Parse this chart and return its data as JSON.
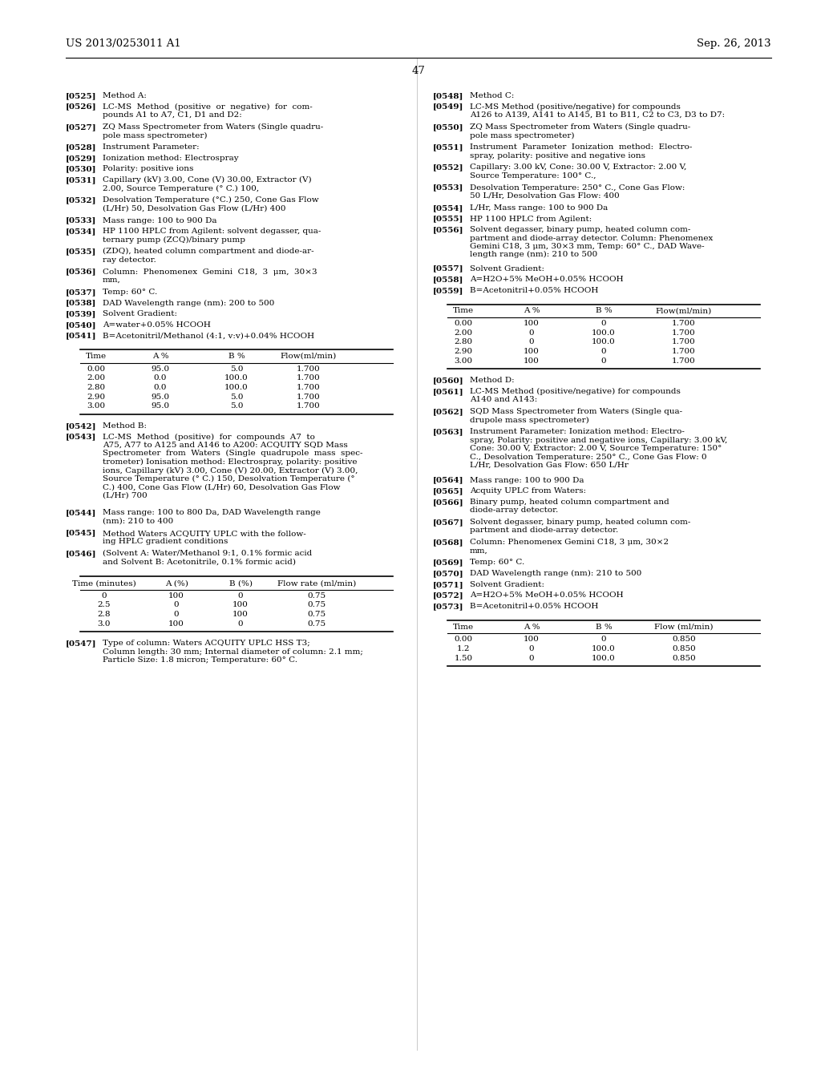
{
  "bg_color": "#ffffff",
  "header_left": "US 2013/0253011 A1",
  "header_right": "Sep. 26, 2013",
  "page_number": "47",
  "left_column": [
    {
      "tag": "[0525]",
      "text": "Method A:"
    },
    {
      "tag": "[0526]",
      "text": "LC-MS  Method  (positive  or  negative)  for  com-\npounds A1 to A7, C1, D1 and D2:"
    },
    {
      "tag": "[0527]",
      "text": "ZQ Mass Spectrometer from Waters (Single quadru-\npole mass spectrometer)"
    },
    {
      "tag": "[0528]",
      "text": "Instrument Parameter:"
    },
    {
      "tag": "[0529]",
      "text": "Ionization method: Electrospray"
    },
    {
      "tag": "[0530]",
      "text": "Polarity: positive ions"
    },
    {
      "tag": "[0531]",
      "text": "Capillary (kV) 3.00, Cone (V) 30.00, Extractor (V)\n2.00, Source Temperature (° C.) 100,"
    },
    {
      "tag": "[0532]",
      "text": "Desolvation Temperature (°C.) 250, Cone Gas Flow\n(L/Hr) 50, Desolvation Gas Flow (L/Hr) 400"
    },
    {
      "tag": "[0533]",
      "text": "Mass range: 100 to 900 Da"
    },
    {
      "tag": "[0534]",
      "text": "HP 1100 HPLC from Agilent: solvent degasser, qua-\nternary pump (ZCQ)/binary pump"
    },
    {
      "tag": "[0535]",
      "text": "(ZDQ), heated column compartment and diode-ar-\nray detector."
    },
    {
      "tag": "[0536]",
      "text": "Column:  Phenomenex  Gemini  C18,  3  μm,  30×3\nmm,"
    },
    {
      "tag": "[0537]",
      "text": "Temp: 60° C."
    },
    {
      "tag": "[0538]",
      "text": "DAD Wavelength range (nm): 200 to 500"
    },
    {
      "tag": "[0539]",
      "text": "Solvent Gradient:"
    },
    {
      "tag": "[0540]",
      "text": "A=water+0.05% HCOOH"
    },
    {
      "tag": "[0541]",
      "text": "B=Acetonitril/Methanol (4:1, v:v)+0.04% HCOOH"
    }
  ],
  "table1_headers": [
    "Time",
    "A %",
    "B %",
    "Flow(ml/min)"
  ],
  "table1_data": [
    [
      "0.00",
      "95.0",
      "5.0",
      "1.700"
    ],
    [
      "2.00",
      "0.0",
      "100.0",
      "1.700"
    ],
    [
      "2.80",
      "0.0",
      "100.0",
      "1.700"
    ],
    [
      "2.90",
      "95.0",
      "5.0",
      "1.700"
    ],
    [
      "3.00",
      "95.0",
      "5.0",
      "1.700"
    ]
  ],
  "left_column2": [
    {
      "tag": "[0542]",
      "text": "Method B:"
    },
    {
      "tag": "[0543]",
      "text": "LC-MS  Method  (positive)  for  compounds  A7  to\nA75, A77 to A125 and A146 to A200: ACQUITY SQD Mass\nSpectrometer  from  Waters  (Single  quadrupole  mass  spec-\ntrometer) Ionisation method: Electrospray, polarity: positive\nions, Capillary (kV) 3.00, Cone (V) 20.00, Extractor (V) 3.00,\nSource Temperature (° C.) 150, Desolvation Temperature (°\nC.) 400, Cone Gas Flow (L/Hr) 60, Desolvation Gas Flow\n(L/Hr) 700"
    },
    {
      "tag": "[0544]",
      "text": "Mass range: 100 to 800 Da, DAD Wavelength range\n(nm): 210 to 400"
    },
    {
      "tag": "[0545]",
      "text": "Method Waters ACQUITY UPLC with the follow-\ning HPLC gradient conditions"
    },
    {
      "tag": "[0546]",
      "text": "(Solvent A: Water/Methanol 9:1, 0.1% formic acid\nand Solvent B: Acetonitrile, 0.1% formic acid)"
    }
  ],
  "table2_headers": [
    "Time (minutes)",
    "A (%)",
    "B (%)",
    "Flow rate (ml/min)"
  ],
  "table2_data": [
    [
      "0",
      "100",
      "0",
      "0.75"
    ],
    [
      "2.5",
      "0",
      "100",
      "0.75"
    ],
    [
      "2.8",
      "0",
      "100",
      "0.75"
    ],
    [
      "3.0",
      "100",
      "0",
      "0.75"
    ]
  ],
  "left_column3": [
    {
      "tag": "[0547]",
      "text": "Type of column: Waters ACQUITY UPLC HSS T3;\nColumn length: 30 mm; Internal diameter of column: 2.1 mm;\nParticle Size: 1.8 micron; Temperature: 60° C."
    }
  ],
  "right_column": [
    {
      "tag": "[0548]",
      "text": "Method C:"
    },
    {
      "tag": "[0549]",
      "text": "LC-MS Method (positive/negative) for compounds\nA126 to A139, A141 to A145, B1 to B11, C2 to C3, D3 to D7:"
    },
    {
      "tag": "[0550]",
      "text": "ZQ Mass Spectrometer from Waters (Single quadru-\npole mass spectrometer)"
    },
    {
      "tag": "[0551]",
      "text": "Instrument  Parameter  Ionization  method:  Electro-\nspray, polarity: positive and negative ions"
    },
    {
      "tag": "[0552]",
      "text": "Capillary: 3.00 kV, Cone: 30.00 V, Extractor: 2.00 V,\nSource Temperature: 100° C.,"
    },
    {
      "tag": "[0553]",
      "text": "Desolvation Temperature: 250° C., Cone Gas Flow:\n50 L/Hr, Desolvation Gas Flow: 400"
    },
    {
      "tag": "[0554]",
      "text": "L/Hr, Mass range: 100 to 900 Da"
    },
    {
      "tag": "[0555]",
      "text": "HP 1100 HPLC from Agilent:"
    },
    {
      "tag": "[0556]",
      "text": "Solvent degasser, binary pump, heated column com-\npartment and diode-array detector. Column: Phenomenex\nGemini C18, 3 μm, 30×3 mm, Temp: 60° C., DAD Wave-\nlength range (nm): 210 to 500"
    },
    {
      "tag": "[0557]",
      "text": "Solvent Gradient:"
    },
    {
      "tag": "[0558]",
      "text": "A=H2O+5% MeOH+0.05% HCOOH"
    },
    {
      "tag": "[0559]",
      "text": "B=Acetonitril+0.05% HCOOH"
    }
  ],
  "table3_headers": [
    "Time",
    "A %",
    "B %",
    "Flow(ml/min)"
  ],
  "table3_data": [
    [
      "0.00",
      "100",
      "0",
      "1.700"
    ],
    [
      "2.00",
      "0",
      "100.0",
      "1.700"
    ],
    [
      "2.80",
      "0",
      "100.0",
      "1.700"
    ],
    [
      "2.90",
      "100",
      "0",
      "1.700"
    ],
    [
      "3.00",
      "100",
      "0",
      "1.700"
    ]
  ],
  "right_column2": [
    {
      "tag": "[0560]",
      "text": "Method D:"
    },
    {
      "tag": "[0561]",
      "text": "LC-MS Method (positive/negative) for compounds\nA140 and A143:"
    },
    {
      "tag": "[0562]",
      "text": "SQD Mass Spectrometer from Waters (Single qua-\ndrupole mass spectrometer)"
    },
    {
      "tag": "[0563]",
      "text": "Instrument Parameter: Ionization method: Electro-\nspray, Polarity: positive and negative ions, Capillary: 3.00 kV,\nCone: 30.00 V, Extractor: 2.00 V, Source Temperature: 150°\nC., Desolvation Temperature: 250° C., Cone Gas Flow: 0\nL/Hr, Desolvation Gas Flow: 650 L/Hr"
    },
    {
      "tag": "[0564]",
      "text": "Mass range: 100 to 900 Da"
    },
    {
      "tag": "[0565]",
      "text": "Acquity UPLC from Waters:"
    },
    {
      "tag": "[0566]",
      "text": "Binary pump, heated column compartment and\ndiode-array detector."
    },
    {
      "tag": "[0567]",
      "text": "Solvent degasser, binary pump, heated column com-\npartment and diode-array detector."
    },
    {
      "tag": "[0568]",
      "text": "Column: Phenomenex Gemini C18, 3 μm, 30×2\nmm,"
    },
    {
      "tag": "[0569]",
      "text": "Temp: 60° C."
    },
    {
      "tag": "[0570]",
      "text": "DAD Wavelength range (nm): 210 to 500"
    },
    {
      "tag": "[0571]",
      "text": "Solvent Gradient:"
    },
    {
      "tag": "[0572]",
      "text": "A=H2O+5% MeOH+0.05% HCOOH"
    },
    {
      "tag": "[0573]",
      "text": "B=Acetonitril+0.05% HCOOH"
    }
  ],
  "table4_headers": [
    "Time",
    "A %",
    "B %",
    "Flow (ml/min)"
  ],
  "table4_data": [
    [
      "0.00",
      "100",
      "0",
      "0.850"
    ],
    [
      "1.2",
      "0",
      "100.0",
      "0.850"
    ],
    [
      "1.50",
      "0",
      "100.0",
      "0.850"
    ]
  ]
}
